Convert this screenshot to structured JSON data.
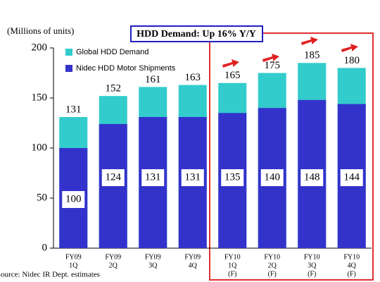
{
  "chart_data": {
    "type": "bar",
    "overlap": true,
    "title": "HDD Demand: Up 16% Y/Y",
    "y_label": "(Millions of units)",
    "source": "Source: Nidec IR Dept. estimates",
    "categories": [
      [
        "FY09",
        "1Q"
      ],
      [
        "FY09",
        "2Q"
      ],
      [
        "FY09",
        "3Q"
      ],
      [
        "FY09",
        "4Q"
      ],
      [
        "FY10",
        "1Q",
        "(F)"
      ],
      [
        "FY10",
        "2Q",
        "(F)"
      ],
      [
        "FY10",
        "3Q",
        "(F)"
      ],
      [
        "FY10",
        "4Q",
        "(F)"
      ]
    ],
    "series": [
      {
        "name": "Global HDD Demand",
        "color": "#33cccc",
        "values": [
          131,
          152,
          161,
          163,
          165,
          175,
          185,
          180
        ]
      },
      {
        "name": "Nidec HDD Motor Shipments",
        "color": "#3333cc",
        "values": [
          100,
          124,
          131,
          131,
          135,
          140,
          148,
          144
        ]
      }
    ],
    "ylim": [
      0,
      200
    ],
    "yticks": [
      0,
      50,
      100,
      150,
      200
    ],
    "grid": false
  }
}
